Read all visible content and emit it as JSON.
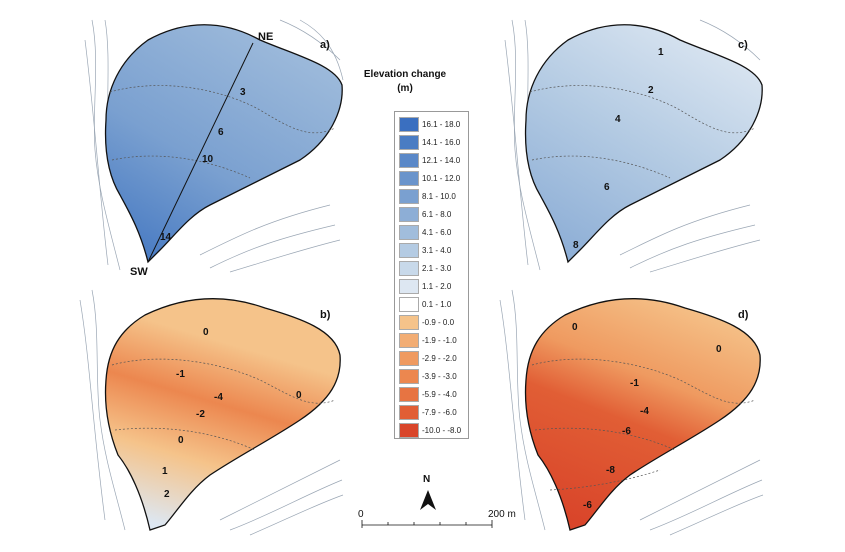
{
  "legend": {
    "title_line1": "Elevation change",
    "title_line2": "(m)",
    "classes": [
      {
        "label": "16.1 - 18.0",
        "color": "#3a6fc0"
      },
      {
        "label": "14.1 - 16.0",
        "color": "#4a7cc3"
      },
      {
        "label": "12.1 - 14.0",
        "color": "#5a88c8"
      },
      {
        "label": "10.1 - 12.0",
        "color": "#6a94cb"
      },
      {
        "label": "8.1 - 10.0",
        "color": "#7aa0d0"
      },
      {
        "label": "6.1 - 8.0",
        "color": "#8daed6"
      },
      {
        "label": "4.1 - 6.0",
        "color": "#a1bddc"
      },
      {
        "label": "3.1 - 4.0",
        "color": "#b4cbe3"
      },
      {
        "label": "2.1 - 3.0",
        "color": "#c8d9ea"
      },
      {
        "label": "1.1 - 2.0",
        "color": "#dde7f2"
      },
      {
        "label": "0.1 - 1.0",
        "color": "#ffffff"
      },
      {
        "label": "-0.9 - 0.0",
        "color": "#f5c38a"
      },
      {
        "label": "-1.9 - -1.0",
        "color": "#f2ad74"
      },
      {
        "label": "-2.9 - -2.0",
        "color": "#ef9a60"
      },
      {
        "label": "-3.9 - -3.0",
        "color": "#ec874f"
      },
      {
        "label": "-5.9 - -4.0",
        "color": "#e77442"
      },
      {
        "label": "-7.9 - -6.0",
        "color": "#e15e35"
      },
      {
        "label": "-10.0 - -8.0",
        "color": "#d9452a"
      }
    ]
  },
  "panels": {
    "a": {
      "letter": "a)",
      "endpoint_ne": "NE",
      "endpoint_sw": "SW",
      "contour_labels": [
        "3",
        "6",
        "10",
        "14"
      ]
    },
    "b": {
      "letter": "b)",
      "contour_labels": [
        "0",
        "-1",
        "-4",
        "-2",
        "0",
        "0",
        "1",
        "2"
      ]
    },
    "c": {
      "letter": "c)",
      "contour_labels": [
        "1",
        "2",
        "4",
        "6",
        "8"
      ]
    },
    "d": {
      "letter": "d)",
      "contour_labels": [
        "0",
        "0",
        "-1",
        "-4",
        "-6",
        "-8",
        "-6"
      ]
    }
  },
  "north_arrow": {
    "label": "N"
  },
  "scale_bar": {
    "start_label": "0",
    "end_label": "200 m"
  }
}
